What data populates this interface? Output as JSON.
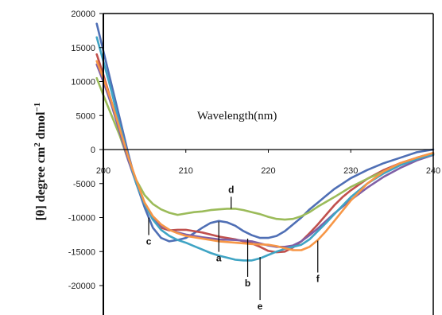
{
  "chart_data": {
    "type": "line",
    "xlabel": "Wavelength(nm)",
    "ylabel": "[θ] degree cm",
    "ylabel_sup2": "2",
    "ylabel_unit": " dmol",
    "ylabel_sup_neg1": "−1",
    "xlim": [
      200,
      240
    ],
    "ylim": [
      -25000,
      20000
    ],
    "x_ticks": [
      "200",
      "210",
      "220",
      "230",
      "240"
    ],
    "y_ticks": [
      "20000",
      "15000",
      "10000",
      "5000",
      "0",
      "-5000",
      "-10000",
      "-15000",
      "-20000"
    ],
    "grid": false,
    "legend": "none",
    "series": [
      {
        "color": "#4f6fb5",
        "x": [
          199.2,
          200,
          201,
          202,
          203,
          204,
          205,
          206,
          207,
          208,
          209,
          210,
          211,
          212,
          213,
          214,
          215,
          216,
          217,
          218,
          219,
          220,
          221,
          222,
          223,
          224,
          225,
          226,
          227,
          228,
          229,
          230,
          232,
          234,
          236,
          238,
          240
        ],
        "y": [
          18500,
          14500,
          9500,
          4500,
          -500,
          -5000,
          -8500,
          -11500,
          -13000,
          -13500,
          -13300,
          -13000,
          -12300,
          -11500,
          -10800,
          -10500,
          -10700,
          -11200,
          -12000,
          -12600,
          -13000,
          -13000,
          -12700,
          -12000,
          -11000,
          -10000,
          -8800,
          -7800,
          -6800,
          -5800,
          -5000,
          -4200,
          -3000,
          -2000,
          -1200,
          -400,
          0
        ]
      },
      {
        "color": "#c0504d",
        "x": [
          199.2,
          200,
          201,
          202,
          203,
          204,
          205,
          206,
          207,
          208,
          209,
          210,
          212,
          214,
          216,
          218,
          219,
          220,
          221,
          222,
          223,
          224,
          225,
          226,
          227,
          228,
          229,
          230,
          232,
          234,
          236,
          238,
          240
        ],
        "y": [
          14000,
          11000,
          7000,
          3000,
          -1000,
          -5000,
          -8000,
          -10300,
          -11500,
          -11900,
          -11800,
          -11800,
          -12200,
          -12800,
          -13200,
          -13800,
          -14300,
          -14900,
          -15100,
          -15000,
          -14400,
          -13500,
          -12300,
          -11000,
          -9600,
          -8200,
          -7000,
          -6000,
          -4300,
          -3000,
          -2000,
          -1200,
          -500
        ]
      },
      {
        "color": "#9bbb59",
        "x": [
          199.2,
          200,
          201,
          202,
          203,
          204,
          205,
          206,
          207,
          208,
          209,
          210,
          211,
          212,
          213,
          214,
          215,
          216,
          217,
          218,
          219,
          220,
          221,
          222,
          223,
          224,
          225,
          226,
          228,
          230,
          232,
          234,
          236,
          238,
          240
        ],
        "y": [
          10500,
          8000,
          5000,
          2000,
          -1500,
          -4500,
          -6700,
          -8000,
          -8800,
          -9300,
          -9600,
          -9400,
          -9200,
          -9100,
          -8900,
          -8800,
          -8700,
          -8700,
          -8900,
          -9200,
          -9500,
          -9900,
          -10200,
          -10300,
          -10200,
          -9800,
          -9200,
          -8400,
          -7000,
          -5500,
          -4300,
          -3200,
          -2200,
          -1300,
          -700
        ]
      },
      {
        "color": "#7f5fa6",
        "x": [
          199.2,
          200,
          201,
          202,
          203,
          204,
          205,
          206,
          207,
          208,
          209,
          210,
          212,
          214,
          216,
          218,
          219,
          220,
          221,
          222,
          223,
          224,
          225,
          226,
          227,
          228,
          230,
          232,
          234,
          236,
          238,
          240
        ],
        "y": [
          12500,
          10000,
          6500,
          2500,
          -1500,
          -5000,
          -8000,
          -10000,
          -11200,
          -11800,
          -12200,
          -12500,
          -12900,
          -13200,
          -13300,
          -13500,
          -13800,
          -14100,
          -14300,
          -14300,
          -14100,
          -13500,
          -12600,
          -11600,
          -10500,
          -9400,
          -7400,
          -5600,
          -4000,
          -2700,
          -1600,
          -800
        ]
      },
      {
        "color": "#3fa4c4",
        "x": [
          199.2,
          200,
          201,
          202,
          203,
          204,
          205,
          206,
          207,
          208,
          209,
          210,
          211,
          212,
          213,
          214,
          215,
          216,
          217,
          218,
          219,
          220,
          221,
          222,
          223,
          224,
          225,
          226,
          227,
          228,
          230,
          232,
          234,
          236,
          238,
          240
        ],
        "y": [
          16500,
          13000,
          8500,
          3500,
          -1000,
          -5000,
          -8000,
          -10300,
          -11800,
          -12700,
          -13300,
          -13700,
          -14200,
          -14700,
          -15200,
          -15600,
          -15900,
          -16200,
          -16300,
          -16300,
          -16000,
          -15500,
          -15000,
          -14600,
          -14300,
          -14000,
          -13200,
          -12000,
          -10800,
          -9500,
          -7000,
          -5000,
          -3500,
          -2300,
          -1400,
          -700
        ]
      },
      {
        "color": "#f79646",
        "x": [
          199.2,
          200,
          201,
          202,
          203,
          204,
          205,
          206,
          207,
          208,
          209,
          210,
          212,
          214,
          216,
          218,
          220,
          221,
          222,
          223,
          224,
          225,
          226,
          227,
          228,
          229,
          230,
          232,
          234,
          236,
          238,
          240
        ],
        "y": [
          13000,
          10500,
          7000,
          3000,
          -1000,
          -4500,
          -7800,
          -9800,
          -11000,
          -11800,
          -12300,
          -12700,
          -13100,
          -13500,
          -13700,
          -13900,
          -14000,
          -14200,
          -14500,
          -14800,
          -14800,
          -14300,
          -13300,
          -12000,
          -10500,
          -9000,
          -7500,
          -5000,
          -3200,
          -2000,
          -1200,
          -500
        ]
      }
    ],
    "annotations": [
      {
        "text": "a",
        "x": 214.0,
        "y": -10600
      },
      {
        "text": "b",
        "x": 217.5,
        "y": -13100
      },
      {
        "text": "c",
        "x": 205.5,
        "y": -10000
      },
      {
        "text": "d",
        "x": 215.5,
        "y": -8700
      },
      {
        "text": "e",
        "x": 219.0,
        "y": -15800
      },
      {
        "text": "f",
        "x": 226.0,
        "y": -13400
      }
    ]
  }
}
